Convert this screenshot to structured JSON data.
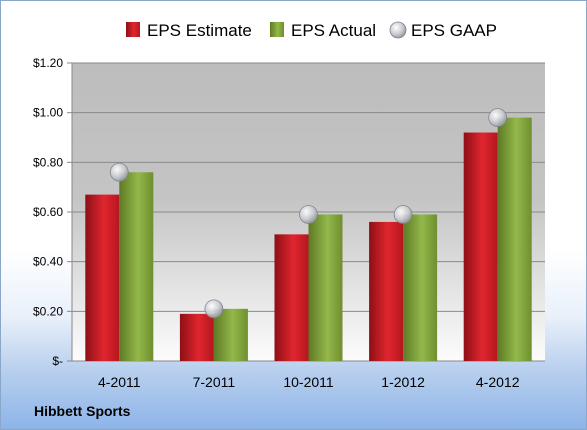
{
  "chart_data": {
    "type": "bar",
    "title": "",
    "xlabel": "",
    "ylabel": "",
    "categories": [
      "4-2011",
      "7-2011",
      "10-2011",
      "1-2012",
      "4-2012"
    ],
    "series": [
      {
        "name": "EPS Estimate",
        "kind": "bar",
        "color": "#d11f2a",
        "values": [
          0.67,
          0.19,
          0.51,
          0.56,
          0.92
        ]
      },
      {
        "name": "EPS Actual",
        "kind": "bar",
        "color": "#7fa03a",
        "values": [
          0.76,
          0.21,
          0.59,
          0.59,
          0.98
        ]
      },
      {
        "name": "EPS GAAP",
        "kind": "marker",
        "color": "#b8bcc2",
        "values": [
          0.76,
          0.21,
          0.59,
          0.59,
          0.98
        ]
      }
    ],
    "ylim": [
      0,
      1.2
    ],
    "yticks": [
      0,
      0.2,
      0.4,
      0.6,
      0.8,
      1.0,
      1.2
    ],
    "ytick_labels": [
      "$-",
      "$0.20",
      "$0.40",
      "$0.60",
      "$0.80",
      "$1.00",
      "$1.20"
    ],
    "legend_position": "top",
    "grid": true
  },
  "company": "Hibbett Sports"
}
